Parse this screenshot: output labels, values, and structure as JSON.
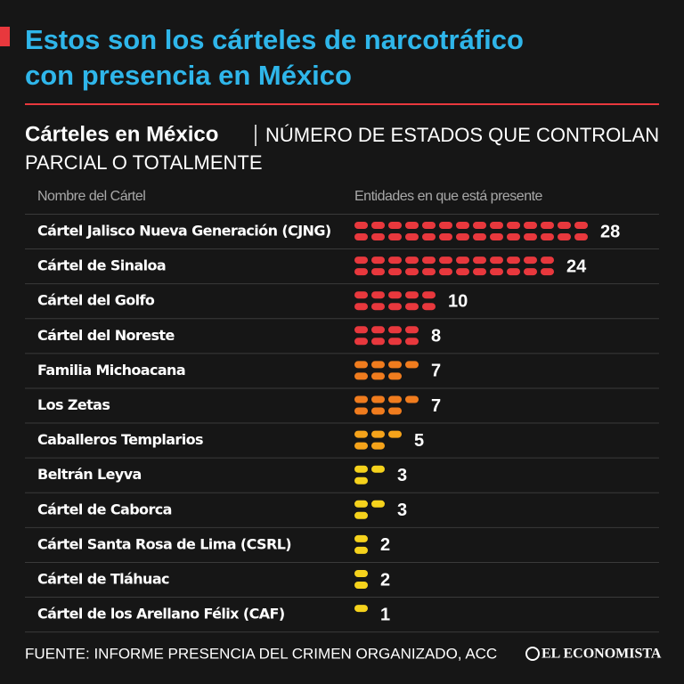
{
  "chart_data": {
    "type": "pictograph",
    "title_lines": [
      "Estos son los cárteles de narcotráfico",
      "con presencia en México"
    ],
    "subtitle_bold": "Cárteles en México",
    "subtitle_lines": [
      "NÚMERO DE ESTADOS QUE CONTROLAN",
      "PARCIAL O TOTALMENTE"
    ],
    "column_headers": [
      "Nombre del Cártel",
      "Entidades en que está presente"
    ],
    "categories": [
      "Cártel Jalisco Nueva Generación (CJNG)",
      "Cártel de Sinaloa",
      "Cártel del Golfo",
      "Cártel del Noreste",
      "Familia Michoacana",
      "Los Zetas",
      "Caballeros Templarios",
      "Beltrán Leyva",
      "Cártel de Caborca",
      "Cártel Santa Rosa de Lima (CSRL)",
      "Cártel de Tláhuac",
      "Cártel de los Arellano Félix (CAF)"
    ],
    "values": [
      28,
      24,
      10,
      8,
      7,
      7,
      5,
      3,
      3,
      2,
      2,
      1
    ],
    "colors": [
      "#e8383d",
      "#e8383d",
      "#e8383d",
      "#e8383d",
      "#f07c1e",
      "#f07c1e",
      "#f5a31a",
      "#f5d21c",
      "#f5d21c",
      "#f5d21c",
      "#f5d21c",
      "#f5d21c"
    ],
    "source": "FUENTE: INFORME PRESENCIA DEL CRIMEN ORGANIZADO, ACC",
    "brand": "EL ECONOMISTA"
  }
}
